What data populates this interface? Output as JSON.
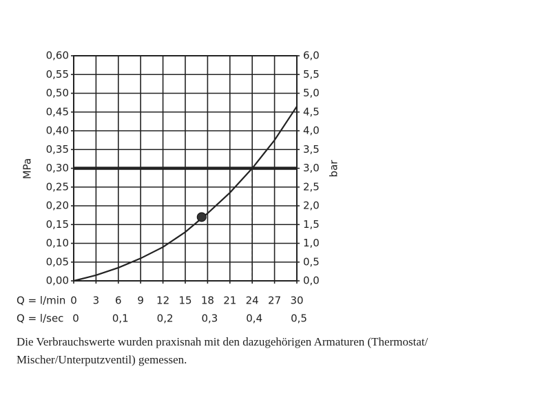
{
  "chart_data": {
    "type": "line",
    "y_label": "MPa",
    "y2_label": "bar",
    "x_label": "Q = l/min",
    "x2_label": "Q = l/sec",
    "x": [
      0,
      3,
      6,
      9,
      12,
      15,
      18,
      21,
      24,
      27,
      30
    ],
    "series": [
      {
        "color": "#222222",
        "values": [
          0,
          0.015,
          0.035,
          0.06,
          0.09,
          0.13,
          0.18,
          0.235,
          0.3,
          0.375,
          0.465
        ]
      }
    ],
    "points": [
      {
        "x": 17.2,
        "y": 0.17
      }
    ],
    "reference_y": 0.3,
    "reference_x": 24,
    "xlim": [
      0,
      30
    ],
    "xticks": [
      0,
      3,
      6,
      9,
      12,
      15,
      18,
      21,
      24,
      27,
      30
    ],
    "x2lim": [
      0,
      0.5
    ],
    "x2ticks": [
      0,
      {
        "value": 0.1,
        "label": "0,1"
      },
      {
        "value": 0.2,
        "label": "0,2"
      },
      {
        "value": 0.3,
        "label": "0,3"
      },
      {
        "value": 0.4,
        "label": "0,4"
      },
      {
        "value": 0.5,
        "label": "0,5"
      }
    ],
    "ylim": [
      0,
      0.6
    ],
    "yticks": [
      {
        "value": 0,
        "label": "0,00"
      },
      {
        "value": 0.05,
        "label": "0,05"
      },
      {
        "value": 0.1,
        "label": "0,10"
      },
      {
        "value": 0.15,
        "label": "0,15"
      },
      {
        "value": 0.2,
        "label": "0,20"
      },
      {
        "value": 0.25,
        "label": "0,25"
      },
      {
        "value": 0.3,
        "label": "0,30"
      },
      {
        "value": 0.35,
        "label": "0,35"
      },
      {
        "value": 0.4,
        "label": "0,40"
      },
      {
        "value": 0.45,
        "label": "0,45"
      },
      {
        "value": 0.5,
        "label": "0,50"
      },
      {
        "value": 0.55,
        "label": "0,55"
      },
      {
        "value": 0.6,
        "label": "0,60"
      }
    ],
    "y2lim": [
      0,
      6
    ],
    "y2ticks": [
      {
        "value": 0,
        "label": "0,0"
      },
      {
        "value": 0.5,
        "label": "0,5"
      },
      {
        "value": 1,
        "label": "1,0"
      },
      {
        "value": 1.5,
        "label": "1,5"
      },
      {
        "value": 2,
        "label": "2,0"
      },
      {
        "value": 2.5,
        "label": "2,5"
      },
      {
        "value": 3,
        "label": "3,0"
      },
      {
        "value": 3.5,
        "label": "3,5"
      },
      {
        "value": 4,
        "label": "4,0"
      },
      {
        "value": 4.5,
        "label": "4,5"
      },
      {
        "value": 5,
        "label": "5,0"
      },
      {
        "value": 5.5,
        "label": "5,5"
      },
      {
        "value": 6,
        "label": "6,0"
      }
    ],
    "grid": true,
    "caption_lines": [
      "Die Verbrauchswerte wurden praxisnah mit den dazugehörigen Armaturen (Thermostat/",
      "Mischer/Unterputzventil) gemessen."
    ]
  }
}
